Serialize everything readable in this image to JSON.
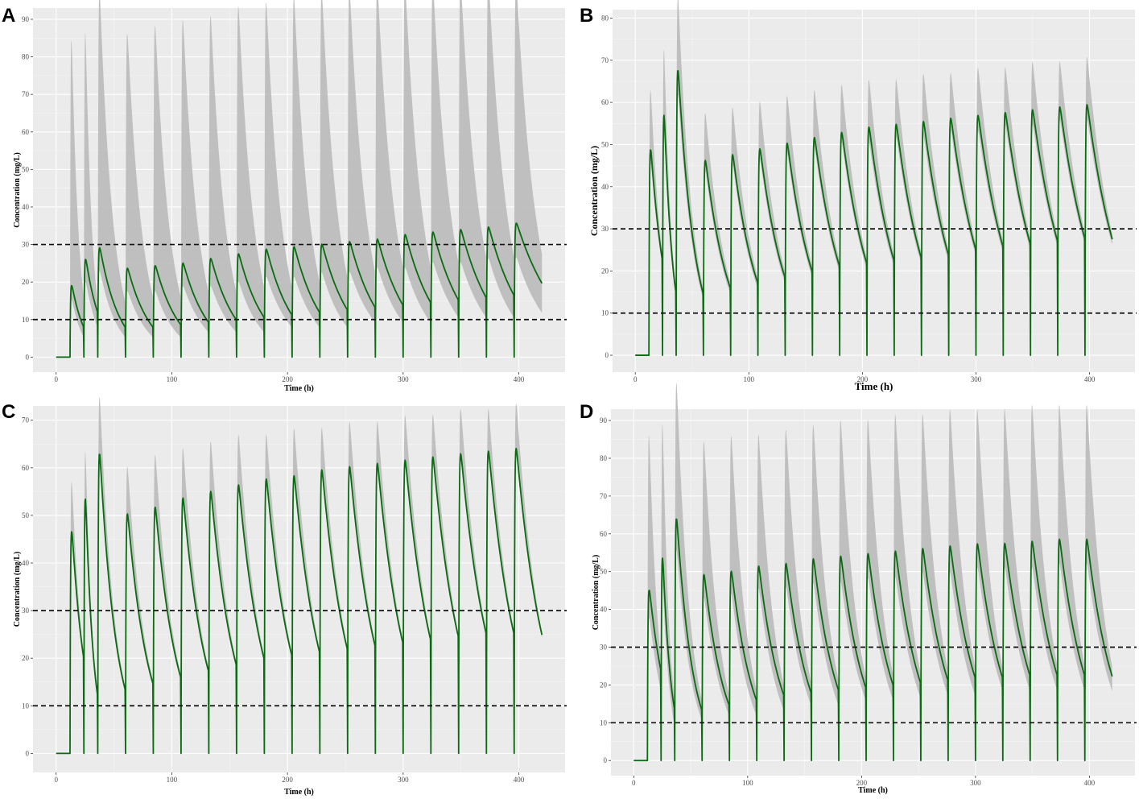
{
  "chart_data": [
    {
      "panel": "A",
      "type": "line",
      "xlabel": "Time (h)",
      "ylabel": "Concentration (mg/L)",
      "xlim": [
        -20,
        440
      ],
      "ylim": [
        -4,
        93
      ],
      "xticks": [
        0,
        100,
        200,
        300,
        400
      ],
      "yticks": [
        0,
        10,
        20,
        30,
        40,
        50,
        60,
        70,
        80,
        90
      ],
      "ytick_labels": [
        "0",
        "10",
        "20",
        "30",
        "40",
        "50",
        "60",
        "70",
        "80",
        "90"
      ],
      "grid": true,
      "reference_lines": [
        10,
        30
      ],
      "dose_times": [
        12,
        24,
        36,
        60,
        84,
        108,
        132,
        156,
        180,
        204,
        228,
        252,
        276,
        300,
        324,
        348,
        372,
        396
      ],
      "end_time": 420,
      "median_peaks": [
        17,
        23,
        25,
        20,
        20.5,
        21,
        22,
        23,
        24,
        24.5,
        25,
        25.5,
        26,
        27,
        27.5,
        28,
        28.5,
        29
      ],
      "median_troughs": [
        10,
        6,
        9,
        6,
        6,
        6.5,
        7,
        7.5,
        8,
        8.5,
        9,
        9.5,
        10,
        10.5,
        11,
        11.5,
        12,
        12.5,
        15
      ],
      "upper_peaks": [
        83,
        86,
        87,
        76,
        78,
        79,
        80,
        82,
        83,
        84,
        85,
        85,
        86,
        86,
        86,
        86,
        87,
        86
      ],
      "upper_troughs": [
        14,
        12,
        11,
        11,
        12,
        12,
        13,
        13,
        14,
        14,
        15,
        16,
        17,
        18,
        18,
        19,
        20,
        20,
        21
      ],
      "lower_peaks": [
        14,
        18,
        20,
        15,
        15,
        16,
        16,
        17,
        18,
        18,
        19,
        19,
        20,
        20,
        21,
        21,
        22,
        22
      ],
      "lower_troughs": [
        7,
        4,
        6,
        4,
        4,
        4,
        5,
        5,
        5,
        6,
        6,
        6,
        7,
        7,
        7,
        8,
        8,
        8,
        9
      ],
      "series": [
        {
          "name": "median",
          "color": "#0a6b12"
        },
        {
          "name": "prediction interval",
          "color": "#bdbdbd"
        }
      ]
    },
    {
      "panel": "B",
      "type": "line",
      "xlabel": "Time (h)",
      "ylabel": "Concentration (mg/L)",
      "xlim": [
        -20,
        440
      ],
      "ylim": [
        -4,
        82
      ],
      "xticks": [
        0,
        100,
        200,
        300,
        400
      ],
      "yticks": [
        0,
        10,
        20,
        30,
        40,
        50,
        60,
        70,
        80
      ],
      "ytick_labels": [
        "0",
        "10",
        "20",
        "30",
        "40",
        "50",
        "60",
        "70",
        "80"
      ],
      "grid": true,
      "reference_lines": [
        10,
        30
      ],
      "dose_times": [
        12,
        24,
        36,
        60,
        84,
        108,
        132,
        156,
        180,
        204,
        228,
        252,
        276,
        300,
        324,
        348,
        372,
        396
      ],
      "end_time": 420,
      "median_peaks": [
        43,
        54,
        59,
        39,
        40,
        41,
        42,
        43,
        44,
        45,
        45.5,
        46,
        46.5,
        47,
        47.5,
        48,
        48.5,
        49
      ],
      "median_troughs": [
        12,
        17,
        11,
        11,
        12,
        13,
        14,
        15,
        16,
        16.5,
        17,
        17.5,
        18,
        19,
        19.5,
        20,
        20.5,
        21
      ],
      "upper_peaks": [
        57,
        70,
        75,
        49,
        50,
        51,
        52,
        53,
        54,
        55,
        55,
        56,
        56,
        57,
        57,
        58,
        58,
        59
      ],
      "upper_troughs": [
        13,
        18,
        12,
        12,
        13,
        14,
        15,
        16,
        17,
        17.5,
        18,
        18.5,
        19,
        20,
        20.5,
        21,
        21.5,
        22
      ],
      "lower_peaks": [
        40,
        50,
        54,
        37,
        38,
        39,
        40,
        41,
        42,
        42,
        43,
        43,
        44,
        44,
        45,
        45,
        46,
        46
      ],
      "lower_troughs": [
        11,
        16,
        10,
        10,
        11,
        12,
        13,
        14,
        15,
        15.5,
        16,
        16.5,
        17,
        18,
        18.5,
        19,
        19.5,
        20
      ],
      "series": [
        {
          "name": "median",
          "color": "#0a6b12"
        },
        {
          "name": "prediction interval",
          "color": "#bdbdbd"
        }
      ]
    },
    {
      "panel": "C",
      "type": "line",
      "xlabel": "Time (h)",
      "ylabel": "Concentration (mg/L)",
      "xlim": [
        -20,
        440
      ],
      "ylim": [
        -4,
        73
      ],
      "xticks": [
        0,
        100,
        200,
        300,
        400
      ],
      "yticks": [
        0,
        10,
        20,
        30,
        40,
        50,
        60,
        70
      ],
      "ytick_labels": [
        "0",
        "10",
        "20",
        "30",
        "40",
        "50",
        "60",
        "70"
      ],
      "grid": true,
      "reference_lines": [
        10,
        30
      ],
      "dose_times": [
        12,
        24,
        36,
        60,
        84,
        108,
        132,
        156,
        180,
        204,
        228,
        252,
        276,
        300,
        324,
        348,
        372,
        396
      ],
      "end_time": 420,
      "median_peaks": [
        41.5,
        51.5,
        55,
        43,
        44,
        45.5,
        46.5,
        47.5,
        48.5,
        49,
        50,
        50.5,
        51,
        51.5,
        52,
        52.5,
        53,
        53.5
      ],
      "median_troughs": [
        11,
        15,
        9,
        10,
        11,
        12,
        13,
        14,
        15,
        15.5,
        16,
        16.5,
        17,
        17.5,
        18,
        18.5,
        19,
        19
      ],
      "upper_peaks": [
        52,
        62,
        66,
        52,
        54,
        55,
        56,
        57,
        57,
        58,
        58,
        59,
        59,
        60,
        60,
        61,
        61,
        62
      ],
      "upper_troughs": [
        11.5,
        15.5,
        9.5,
        10.5,
        11.5,
        12.5,
        13.5,
        14.5,
        15.5,
        16,
        16.5,
        17,
        17.5,
        18,
        18.5,
        19,
        19.5,
        19.5
      ],
      "lower_peaks": [
        40.5,
        50.5,
        54,
        42,
        43,
        44.5,
        45.5,
        46.5,
        47.5,
        48,
        49,
        49.5,
        50,
        50.5,
        51,
        51.5,
        52,
        52.5
      ],
      "lower_troughs": [
        10.5,
        14.5,
        8.5,
        9.5,
        10.5,
        11.5,
        12.5,
        13.5,
        14.5,
        15,
        15.5,
        16,
        16.5,
        17,
        17.5,
        18,
        18.5,
        18.5
      ],
      "series": [
        {
          "name": "median",
          "color": "#0a6b12"
        },
        {
          "name": "prediction interval",
          "color": "#bdbdbd"
        }
      ]
    },
    {
      "panel": "D",
      "type": "line",
      "xlabel": "Time (h)",
      "ylabel": "Concentration (mg/L)",
      "xlim": [
        -20,
        440
      ],
      "ylim": [
        -4,
        93
      ],
      "xticks": [
        0,
        100,
        200,
        300,
        400
      ],
      "yticks": [
        0,
        10,
        20,
        30,
        40,
        50,
        60,
        70,
        80,
        90
      ],
      "ytick_labels": [
        "0",
        "10",
        "20",
        "30",
        "40",
        "50",
        "60",
        "70",
        "80",
        "90"
      ],
      "grid": true,
      "reference_lines": [
        10,
        30
      ],
      "dose_times": [
        12,
        24,
        36,
        60,
        84,
        108,
        132,
        156,
        180,
        204,
        228,
        252,
        276,
        300,
        324,
        348,
        372,
        396
      ],
      "end_time": 420,
      "median_peaks": [
        39,
        51,
        56,
        42,
        42.5,
        43.5,
        44,
        45,
        45.5,
        46,
        46.5,
        47,
        47.5,
        48,
        48,
        48.5,
        49,
        49
      ],
      "median_troughs": [
        13,
        18,
        10,
        10,
        11,
        12,
        13,
        13.5,
        14,
        14.5,
        15,
        15.5,
        16,
        16.5,
        16.5,
        17,
        17,
        17
      ],
      "upper_peaks": [
        80,
        88,
        89,
        74,
        75,
        75,
        76,
        77,
        78,
        78,
        79,
        79,
        80,
        80,
        80,
        81,
        81,
        81
      ],
      "upper_troughs": [
        15,
        20,
        12,
        12,
        13,
        14,
        15,
        15.5,
        16,
        16.5,
        17,
        17.5,
        18,
        18.5,
        18.5,
        19,
        19,
        19
      ],
      "lower_peaks": [
        33,
        45,
        49,
        37,
        38,
        39,
        39,
        40,
        40,
        41,
        41,
        42,
        42,
        43,
        43,
        43,
        44,
        44
      ],
      "lower_troughs": [
        10,
        14,
        7,
        8,
        9,
        9,
        10,
        11,
        11,
        12,
        12,
        12.5,
        13,
        13,
        14,
        14,
        14,
        14
      ],
      "series": [
        {
          "name": "median",
          "color": "#0a6b12"
        },
        {
          "name": "prediction interval",
          "color": "#bdbdbd"
        }
      ]
    }
  ]
}
